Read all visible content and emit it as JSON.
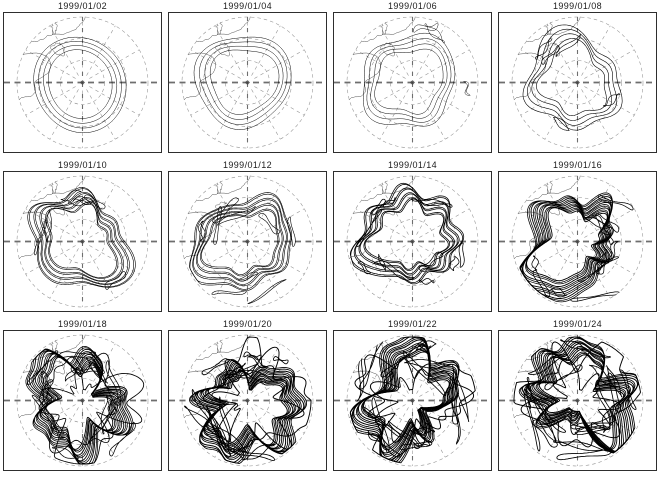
{
  "figure": {
    "grid": {
      "rows": 3,
      "cols": 4
    },
    "map": {
      "projection": "polar-stereographic-north",
      "graticule": {
        "latitude_circles": 3,
        "meridian_step_deg": 30,
        "style": "dashed"
      },
      "bold_center_line": "horizontal-dashed",
      "pole_marker": "asterisk"
    },
    "style": {
      "background": "#ffffff",
      "border_color": "#2e2e2e",
      "title_color": "#1c1c1c",
      "graticule_color": "#8f8f8f",
      "bold_line_color": "#6e6e6e",
      "coast_color": "#3c3c3c",
      "contour_color": "#000000"
    },
    "panels": [
      {
        "date": "1999/01/02",
        "complexity": 1
      },
      {
        "date": "1999/01/04",
        "complexity": 2
      },
      {
        "date": "1999/01/06",
        "complexity": 3
      },
      {
        "date": "1999/01/08",
        "complexity": 4
      },
      {
        "date": "1999/01/10",
        "complexity": 5
      },
      {
        "date": "1999/01/12",
        "complexity": 6
      },
      {
        "date": "1999/01/14",
        "complexity": 7
      },
      {
        "date": "1999/01/16",
        "complexity": 8
      },
      {
        "date": "1999/01/18",
        "complexity": 9
      },
      {
        "date": "1999/01/20",
        "complexity": 10
      },
      {
        "date": "1999/01/22",
        "complexity": 11
      },
      {
        "date": "1999/01/24",
        "complexity": 12
      }
    ]
  }
}
